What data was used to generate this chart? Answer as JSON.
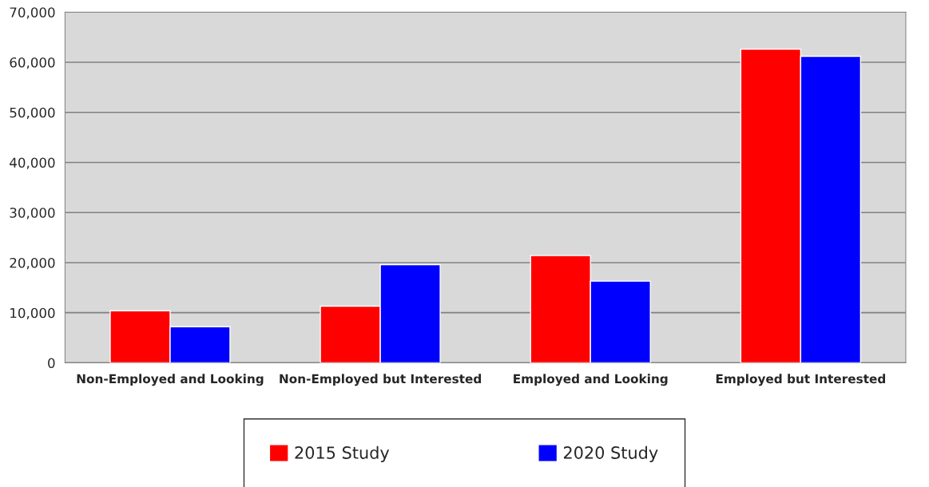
{
  "chart_data": {
    "type": "bar",
    "categories": [
      "Non-Employed and Looking",
      "Non-Employed but Interested",
      "Employed and Looking",
      "Employed but Interested"
    ],
    "series": [
      {
        "name": "2015 Study",
        "color": "#ff0000",
        "values": [
          10400,
          11300,
          21400,
          62600
        ]
      },
      {
        "name": "2020 Study",
        "color": "#0000ff",
        "values": [
          7200,
          19600,
          16300,
          61200
        ]
      }
    ],
    "ylim": [
      0,
      70000
    ],
    "yticks": [
      {
        "value": 0,
        "label": "0"
      },
      {
        "value": 10000,
        "label": "10,000"
      },
      {
        "value": 20000,
        "label": "20,000"
      },
      {
        "value": 30000,
        "label": "30,000"
      },
      {
        "value": 40000,
        "label": "40,000"
      },
      {
        "value": 50000,
        "label": "50,000"
      },
      {
        "value": 60000,
        "label": "60,000"
      },
      {
        "value": 70000,
        "label": "70,000"
      }
    ],
    "grid": "y",
    "legend": "bottom"
  }
}
